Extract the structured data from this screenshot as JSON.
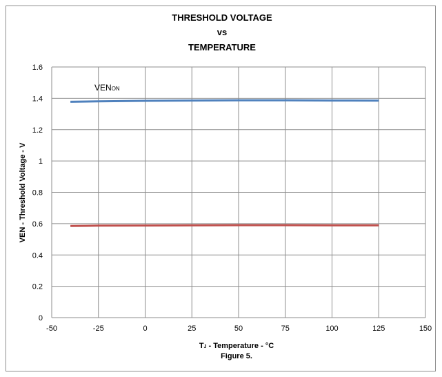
{
  "chart_data": {
    "type": "line",
    "title_lines": [
      "THRESHOLD VOLTAGE",
      "vs",
      "TEMPERATURE"
    ],
    "xlabel": "Tj - Temperature - °C",
    "xlabel_main": "T",
    "xlabel_sub": "J",
    "xlabel_rest": " - Temperature - °C",
    "caption": "Figure 5.",
    "ylabel": "VEN - Threshold Voltage - V",
    "xlim": [
      -50,
      150
    ],
    "ylim": [
      0,
      1.6
    ],
    "xticks": [
      -50,
      -25,
      0,
      25,
      50,
      75,
      100,
      125,
      150
    ],
    "yticks": [
      0,
      0.2,
      0.4,
      0.6,
      0.8,
      1,
      1.2,
      1.4,
      1.6
    ],
    "grid": true,
    "series": [
      {
        "color": "#4f81bd",
        "x": [
          -40,
          -25,
          0,
          25,
          50,
          75,
          100,
          125
        ],
        "values": [
          1.378,
          1.381,
          1.384,
          1.386,
          1.387,
          1.387,
          1.386,
          1.385
        ]
      },
      {
        "color": "#c0504d",
        "x": [
          -40,
          -25,
          0,
          25,
          50,
          75,
          100,
          125
        ],
        "values": [
          0.585,
          0.587,
          0.588,
          0.589,
          0.59,
          0.59,
          0.589,
          0.589
        ]
      }
    ],
    "annotations": [
      {
        "text": "VEN",
        "subscript": "ON"
      }
    ]
  }
}
